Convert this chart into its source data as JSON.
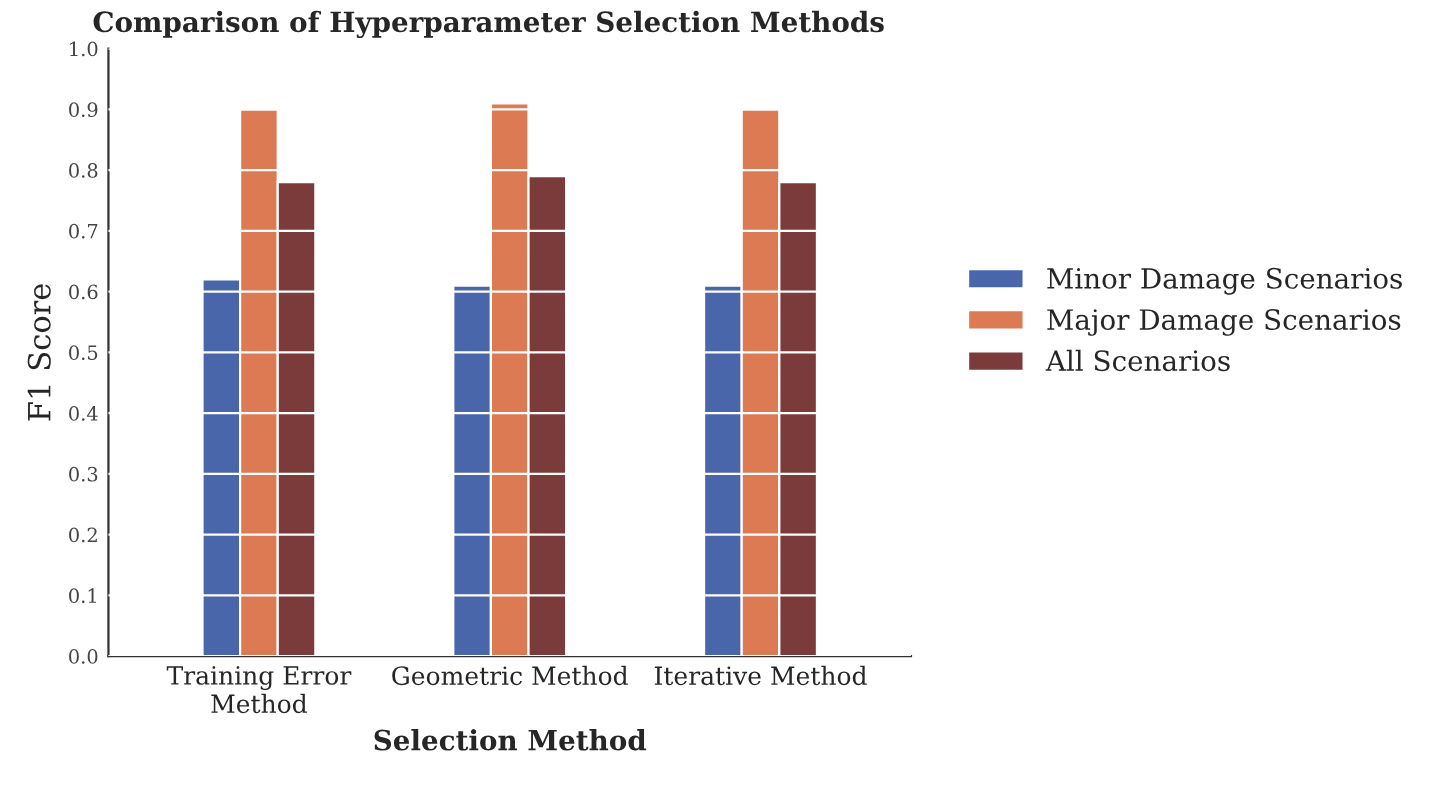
{
  "chart_data": {
    "type": "bar",
    "title": "Comparison of Hyperparameter Selection Methods",
    "xlabel": "Selection Method",
    "ylabel": "F1 Score",
    "categories": [
      "Training Error\nMethod",
      "Geometric Method",
      "Iterative Method"
    ],
    "series": [
      {
        "name": "Minor Damage Scenarios",
        "color": "#4a66ab",
        "values": [
          0.62,
          0.61,
          0.61
        ]
      },
      {
        "name": "Major Damage Scenarios",
        "color": "#dc7a54",
        "values": [
          0.9,
          0.91,
          0.9
        ]
      },
      {
        "name": "All Scenarios",
        "color": "#7c3b3b",
        "values": [
          0.78,
          0.79,
          0.78
        ]
      }
    ],
    "ylim": [
      0,
      1.0
    ],
    "yticks": [
      {
        "value": 0,
        "label": "0.0"
      },
      0.1,
      0.2,
      0.3,
      0.4,
      0.5,
      0.6,
      0.7,
      0.8,
      0.9,
      {
        "value": 1,
        "label": "1.0"
      }
    ],
    "grid": "y",
    "legend": "right"
  }
}
